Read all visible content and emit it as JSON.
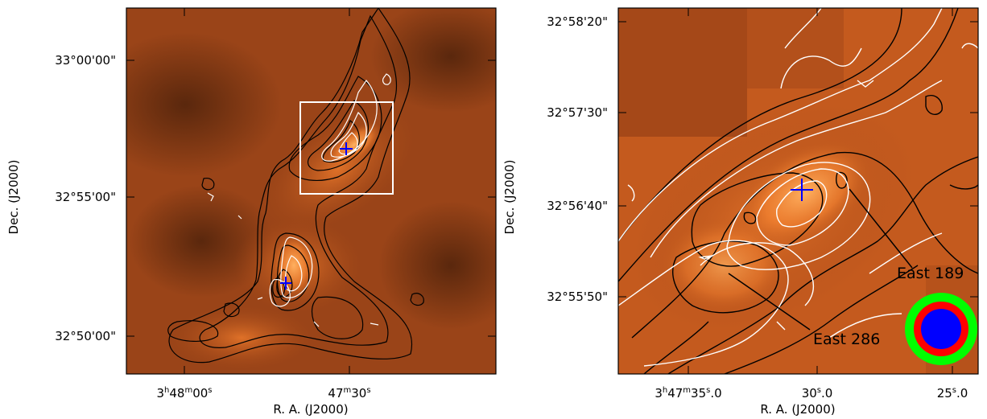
{
  "left_panel": {
    "ra_ticks": [
      {
        "h": "3",
        "hu": "h",
        "m": "48",
        "mu": "m",
        "s": "00",
        "su": "s"
      },
      {
        "h": "",
        "hu": "",
        "m": "47",
        "mu": "m",
        "s": "30",
        "su": "s"
      }
    ],
    "dec_ticks": [
      "33°00'00\"",
      "32°55'00\"",
      "32°50'00\""
    ],
    "xlabel": "R. A. (J2000)",
    "ylabel": "Dec. (J2000)"
  },
  "right_panel": {
    "ra_ticks": [
      {
        "h": "3",
        "hu": "h",
        "m": "47",
        "mu": "m",
        "s": "35",
        "su": "s",
        "frac": ".0"
      },
      {
        "h": "",
        "hu": "",
        "m": "",
        "mu": "",
        "s": "30",
        "su": "s",
        "frac": ".0"
      },
      {
        "h": "",
        "hu": "",
        "m": "",
        "mu": "",
        "s": "25",
        "su": "s",
        "frac": ".0"
      }
    ],
    "dec_ticks": [
      "32°58'20\"",
      "32°57'30\"",
      "32°56'40\"",
      "32°55'50\""
    ],
    "xlabel": "R. A. (J2000)",
    "ylabel": "Dec. (J2000)",
    "annotations": [
      "East 189",
      "East 286"
    ]
  },
  "colors": {
    "map_dark": "#5a2a10",
    "map_bright": "#ff8a2a",
    "contour_black": "#000000",
    "contour_white": "#ffffff",
    "source_cross": "#0000ff",
    "beam_outer": "#00ff00",
    "beam_middle": "#ff0000",
    "beam_inner": "#0000ff"
  }
}
